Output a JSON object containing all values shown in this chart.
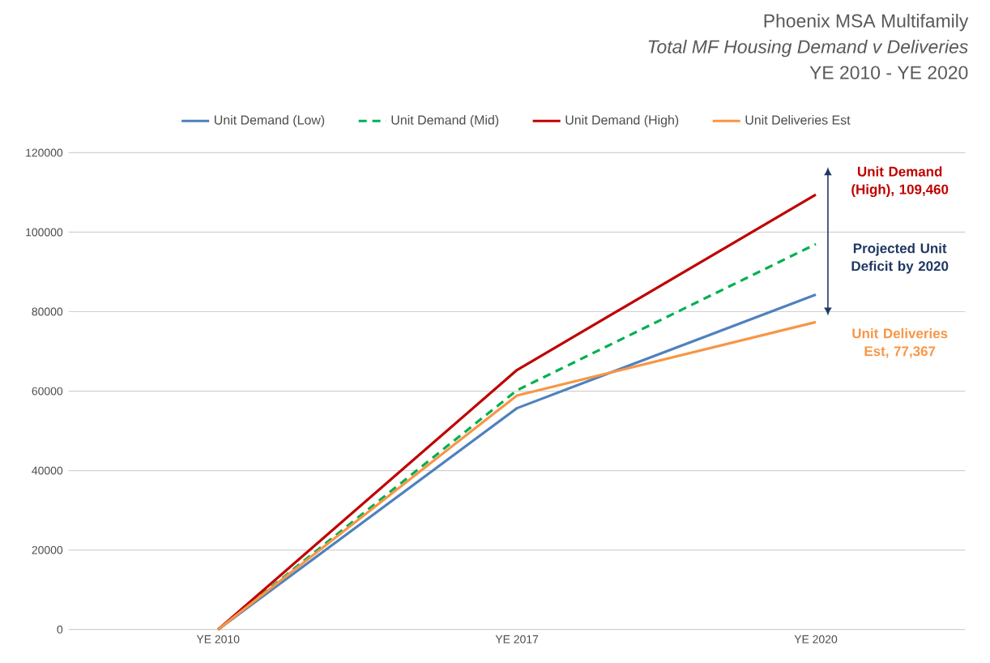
{
  "chart_data": {
    "type": "line",
    "title": "Phoenix MSA Multifamily",
    "subtitle": "*Total MF Housing Demand v Deliveries*",
    "categories": [
      "YE 2010",
      "YE 2017",
      "YE 2020"
    ],
    "series": [
      {
        "name": "Unit Demand (Low)",
        "color": "#4f81bd",
        "values": [
          0,
          55700,
          84300
        ],
        "line_style": "solid"
      },
      {
        "name": "Unit Demand (Mid)",
        "color": "#00b050",
        "values": [
          0,
          60200,
          97000
        ],
        "line_style": "dashed"
      },
      {
        "name": "Unit Demand (High)",
        "color": "#c00000",
        "values": [
          0,
          65300,
          109460
        ],
        "line_style": "solid"
      },
      {
        "name": "Unit Deliveries Est",
        "color": "#f79646",
        "values": [
          0,
          58900,
          77367
        ],
        "line_style": "solid"
      }
    ],
    "ylim": [
      0,
      120000
    ],
    "yticks": [
      0,
      20000,
      40000,
      60000,
      80000,
      100000,
      120000
    ],
    "grid": "y",
    "legend": "top",
    "marker": "none",
    "annotations": [
      "YE 2010 - YE 2020",
      {
        "text": "Unit Demand (High), 109,460",
        "x": "YE 2020",
        "y": 109460
      },
      "Projected Unit Deficit by 2020",
      {
        "text": "Unit Deliveries Est, 77,367",
        "x": "YE 2020",
        "y": 77367
      }
    ]
  }
}
